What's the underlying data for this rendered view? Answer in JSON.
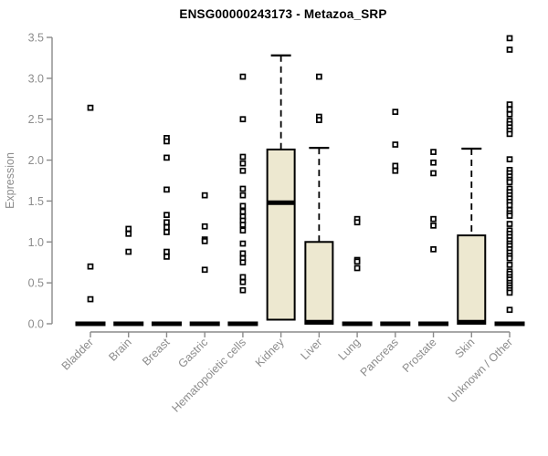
{
  "chart_data": {
    "type": "boxplot",
    "title": "ENSG00000243173 - Metazoa_SRP",
    "ylabel": "Expression",
    "xlabel": "",
    "ylim": [
      0,
      3.5
    ],
    "ytick_labels": [
      "0.0",
      "0.5",
      "1.0",
      "1.5",
      "2.0",
      "2.5",
      "3.0",
      "3.5"
    ],
    "grid": false,
    "legend": null,
    "categories": [
      "Bladder",
      "Brain",
      "Breast",
      "Gastric",
      "Hematopoietic cells",
      "Kidney",
      "Liver",
      "Lung",
      "Pancreas",
      "Prostate",
      "Skin",
      "Unknown / Other"
    ],
    "series": [
      {
        "category": "Bladder",
        "q1": 0,
        "median": 0,
        "q3": 0,
        "whisker_low": 0,
        "whisker_high": 0,
        "outliers": [
          2.64,
          0.7,
          0.3
        ]
      },
      {
        "category": "Brain",
        "q1": 0,
        "median": 0,
        "q3": 0,
        "whisker_low": 0,
        "whisker_high": 0,
        "outliers": [
          1.16,
          1.1,
          0.88
        ]
      },
      {
        "category": "Breast",
        "q1": 0,
        "median": 0,
        "q3": 0,
        "whisker_low": 0,
        "whisker_high": 0,
        "outliers": [
          2.27,
          2.23,
          2.03,
          1.64,
          1.33,
          1.24,
          1.18,
          1.12,
          0.88,
          0.82
        ]
      },
      {
        "category": "Gastric",
        "q1": 0,
        "median": 0,
        "q3": 0,
        "whisker_low": 0,
        "whisker_high": 0,
        "outliers": [
          1.57,
          1.19,
          1.03,
          1.01,
          0.66
        ]
      },
      {
        "category": "Hematopoietic cells",
        "q1": 0,
        "median": 0,
        "q3": 0,
        "whisker_low": 0,
        "whisker_high": 0,
        "outliers": [
          3.02,
          2.5,
          2.04,
          1.96,
          1.87,
          1.65,
          1.57,
          1.44,
          1.37,
          1.31,
          1.26,
          1.21,
          1.14,
          0.98,
          0.86,
          0.8,
          0.75,
          0.57,
          0.51,
          0.41
        ]
      },
      {
        "category": "Kidney",
        "q1": 0.05,
        "median": 1.48,
        "q3": 2.13,
        "whisker_low": 0.05,
        "whisker_high": 3.28,
        "outliers": []
      },
      {
        "category": "Liver",
        "q1": 0,
        "median": 0.02,
        "q3": 1.0,
        "whisker_low": 0,
        "whisker_high": 2.15,
        "outliers": [
          3.02,
          2.53,
          2.49
        ]
      },
      {
        "category": "Lung",
        "q1": 0,
        "median": 0,
        "q3": 0,
        "whisker_low": 0,
        "whisker_high": 0,
        "outliers": [
          1.28,
          1.24,
          0.78,
          0.76,
          0.68
        ]
      },
      {
        "category": "Pancreas",
        "q1": 0,
        "median": 0,
        "q3": 0,
        "whisker_low": 0,
        "whisker_high": 0,
        "outliers": [
          2.59,
          2.19,
          1.93,
          1.87
        ]
      },
      {
        "category": "Prostate",
        "q1": 0,
        "median": 0,
        "q3": 0,
        "whisker_low": 0,
        "whisker_high": 0,
        "outliers": [
          2.1,
          1.97,
          1.84,
          1.28,
          1.2,
          0.91
        ]
      },
      {
        "category": "Skin",
        "q1": 0,
        "median": 0.02,
        "q3": 1.08,
        "whisker_low": 0,
        "whisker_high": 2.14,
        "outliers": []
      },
      {
        "category": "Unknown / Other",
        "q1": 0,
        "median": 0,
        "q3": 0,
        "whisker_low": 0,
        "whisker_high": 0,
        "outliers": [
          3.49,
          3.35,
          2.68,
          2.62,
          2.56,
          2.48,
          2.44,
          2.4,
          2.36,
          2.32,
          2.01,
          1.88,
          1.84,
          1.8,
          1.76,
          1.73,
          1.65,
          1.61,
          1.57,
          1.53,
          1.49,
          1.45,
          1.39,
          1.35,
          1.32,
          1.22,
          1.14,
          1.1,
          1.06,
          1.02,
          0.98,
          0.95,
          0.91,
          0.87,
          0.83,
          0.8,
          0.72,
          0.64,
          0.61,
          0.57,
          0.54,
          0.5,
          0.47,
          0.44,
          0.41,
          0.38,
          0.17
        ]
      }
    ],
    "colors": {
      "box_fill": "#EDE8D0",
      "box_stroke": "#000000",
      "median": "#000000",
      "whisker": "#000000",
      "outlier_stroke": "#000000",
      "outlier_fill": "#FFFFFF",
      "axis": "#8A8A8A",
      "tick_label": "#8C8C8C",
      "title": "#000000"
    }
  }
}
